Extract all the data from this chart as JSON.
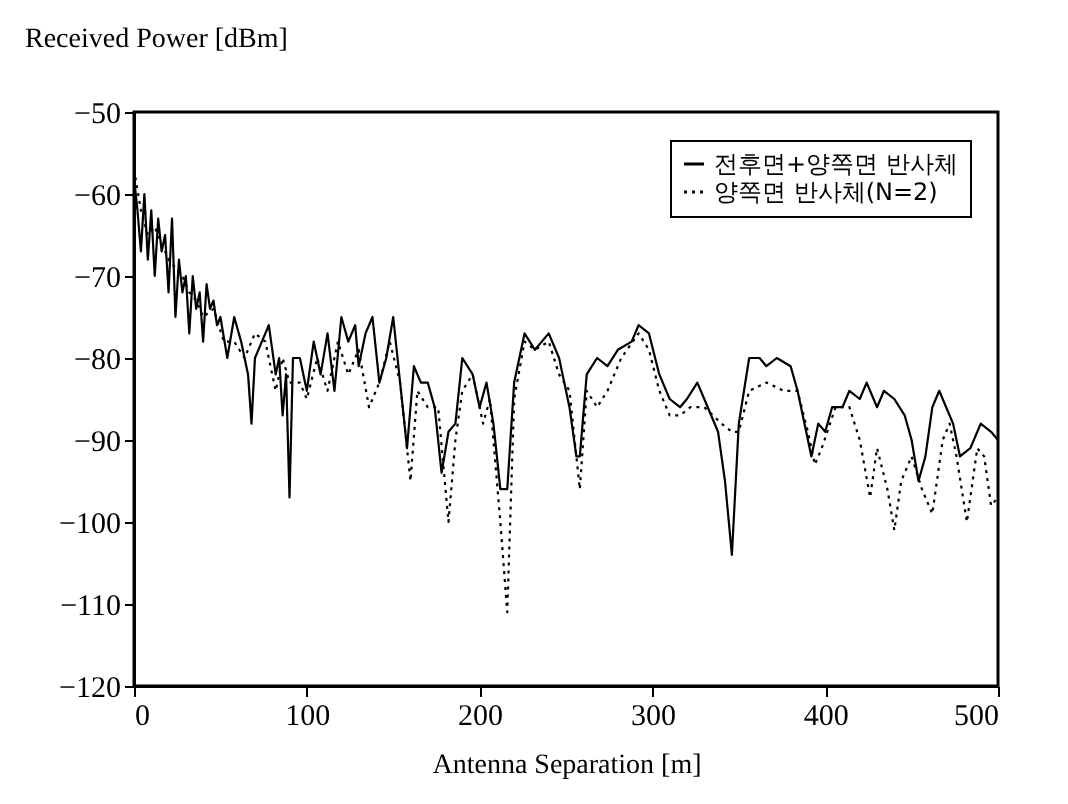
{
  "chart_data": {
    "type": "line",
    "xlabel": "Antenna Separation [m]",
    "ylabel": "Received Power [dBm]",
    "xlim": [
      0,
      500
    ],
    "ylim": [
      -120,
      -50
    ],
    "xticks": [
      0,
      100,
      200,
      300,
      400,
      500
    ],
    "yticks": [
      -120,
      -110,
      -100,
      -90,
      -80,
      -70,
      -60,
      -50
    ],
    "grid": false,
    "legend": "top right",
    "series": [
      {
        "name": "전후면+양쪽면 반사체",
        "color": "#000000",
        "line_style": "solid",
        "x": [
          0,
          2,
          4,
          6,
          8,
          10,
          12,
          14,
          16,
          18,
          20,
          22,
          24,
          26,
          28,
          30,
          32,
          34,
          36,
          38,
          40,
          42,
          44,
          46,
          48,
          50,
          54,
          58,
          62,
          66,
          68,
          70,
          74,
          78,
          82,
          84,
          86,
          88,
          90,
          92,
          96,
          100,
          104,
          108,
          112,
          116,
          120,
          124,
          128,
          130,
          134,
          138,
          142,
          146,
          150,
          154,
          158,
          162,
          166,
          170,
          174,
          178,
          182,
          186,
          190,
          196,
          200,
          204,
          208,
          212,
          216,
          220,
          226,
          232,
          240,
          246,
          252,
          256,
          258,
          262,
          268,
          274,
          280,
          288,
          292,
          298,
          304,
          310,
          316,
          320,
          326,
          330,
          338,
          342,
          346,
          350,
          356,
          362,
          366,
          372,
          380,
          384,
          388,
          392,
          396,
          400,
          404,
          410,
          414,
          420,
          424,
          430,
          434,
          440,
          446,
          450,
          454,
          458,
          462,
          466,
          470,
          474,
          478,
          484,
          490,
          496,
          500
        ],
        "values": [
          -58,
          -62,
          -67,
          -60,
          -68,
          -62,
          -70,
          -63,
          -67,
          -65,
          -72,
          -63,
          -75,
          -68,
          -72,
          -70,
          -77,
          -70,
          -74,
          -72,
          -78,
          -71,
          -74,
          -73,
          -76,
          -75,
          -80,
          -75,
          -78,
          -82,
          -88,
          -80,
          -78,
          -76,
          -82,
          -80,
          -87,
          -82,
          -97,
          -80,
          -80,
          -84,
          -78,
          -82,
          -77,
          -84,
          -75,
          -78,
          -76,
          -81,
          -77,
          -75,
          -83,
          -80,
          -75,
          -83,
          -91,
          -81,
          -83,
          -83,
          -86,
          -94,
          -89,
          -88,
          -80,
          -82,
          -86,
          -83,
          -88,
          -96,
          -96,
          -83,
          -77,
          -79,
          -77,
          -80,
          -86,
          -92,
          -92,
          -82,
          -80,
          -81,
          -79,
          -78,
          -76,
          -77,
          -82,
          -85,
          -86,
          -85,
          -83,
          -85,
          -89,
          -95,
          -104,
          -88,
          -80,
          -80,
          -81,
          -80,
          -81,
          -84,
          -88,
          -92,
          -88,
          -89,
          -86,
          -86,
          -84,
          -85,
          -83,
          -86,
          -84,
          -85,
          -87,
          -90,
          -95,
          -92,
          -86,
          -84,
          -86,
          -88,
          -92,
          -91,
          -88,
          -89,
          -90
        ]
      },
      {
        "name": "양쪽면 반사체(N=2)",
        "color": "#000000",
        "line_style": "dotted",
        "x": [
          0,
          4,
          8,
          12,
          16,
          20,
          24,
          28,
          32,
          36,
          40,
          46,
          52,
          58,
          64,
          70,
          76,
          82,
          86,
          90,
          96,
          100,
          106,
          112,
          118,
          124,
          130,
          136,
          142,
          148,
          154,
          160,
          164,
          170,
          176,
          182,
          186,
          190,
          196,
          202,
          206,
          212,
          216,
          220,
          226,
          232,
          240,
          246,
          252,
          258,
          262,
          268,
          274,
          282,
          292,
          298,
          304,
          310,
          316,
          322,
          330,
          340,
          346,
          350,
          356,
          366,
          376,
          384,
          390,
          394,
          398,
          406,
          414,
          420,
          426,
          430,
          436,
          440,
          444,
          450,
          456,
          462,
          468,
          472,
          476,
          482,
          488,
          492,
          496,
          500
        ],
        "values": [
          -57,
          -62,
          -65,
          -64,
          -66,
          -68,
          -69,
          -70,
          -72,
          -73,
          -75,
          -74,
          -78,
          -78,
          -80,
          -77,
          -78,
          -84,
          -80,
          -83,
          -83,
          -85,
          -80,
          -84,
          -78,
          -82,
          -79,
          -86,
          -83,
          -78,
          -83,
          -95,
          -84,
          -86,
          -86,
          -100,
          -90,
          -84,
          -82,
          -88,
          -85,
          -100,
          -111,
          -85,
          -78,
          -79,
          -78,
          -82,
          -84,
          -96,
          -84,
          -86,
          -84,
          -80,
          -77,
          -79,
          -84,
          -87,
          -87,
          -86,
          -86,
          -88,
          -89,
          -89,
          -84,
          -83,
          -84,
          -84,
          -89,
          -93,
          -91,
          -86,
          -86,
          -90,
          -97,
          -91,
          -96,
          -101,
          -95,
          -92,
          -96,
          -99,
          -90,
          -88,
          -92,
          -100,
          -91,
          -92,
          -98,
          -97
        ]
      }
    ]
  }
}
